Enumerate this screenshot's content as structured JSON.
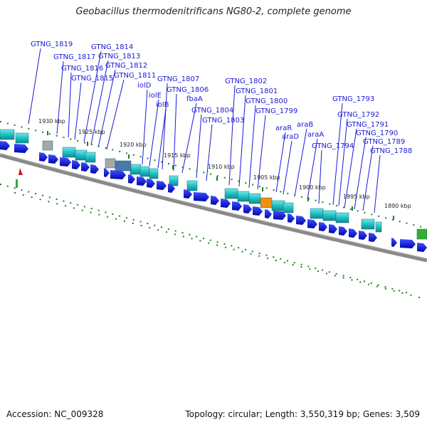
{
  "header": {
    "title": "Geobacillus thermodenitrificans NG80-2, complete genome"
  },
  "footer": {
    "accession": "Accession: NC_009328",
    "stats": "Topology: circular; Length: 3,550,319 bp; Genes: 3,509"
  },
  "ticks": [
    "1930 kbp",
    "1925 kbp",
    "1920 kbp",
    "1915 kbp",
    "1910 kbp",
    "1905 kbp",
    "1900 kbp",
    "1895 kbp",
    "1890 kbp"
  ],
  "gene_labels": [
    "GTNG_1819",
    "GTNG_1817",
    "GTNG_1816",
    "GTNG_1815",
    "GTNG_1814",
    "GTNG_1813",
    "GTNG_1812",
    "GTNG_1811",
    "iolD",
    "iolE",
    "iolB",
    "GTNG_1807",
    "GTNG_1806",
    "fbaA",
    "GTNG_1804",
    "GTNG_1803",
    "GTNG_1802",
    "GTNG_1801",
    "GTNG_1800",
    "GTNG_1799",
    "araR",
    "araD",
    "araB",
    "araA",
    "GTNG_1794",
    "GTNG_1793",
    "GTNG_1792",
    "GTNG_1791",
    "GTNG_1790",
    "GTNG_1789",
    "GTNG_1788"
  ],
  "colors": {
    "gene_arrow": "#0a10e0",
    "feature_cyan": "#20c8cc",
    "feature_gray": "#a8a8a8",
    "feature_steel": "#4a78a8",
    "feature_orange": "#f09010",
    "feature_green": "#30b030",
    "dot_track": "#208020",
    "label": "#1a1ad6",
    "backbone": "#8a8a8a"
  }
}
